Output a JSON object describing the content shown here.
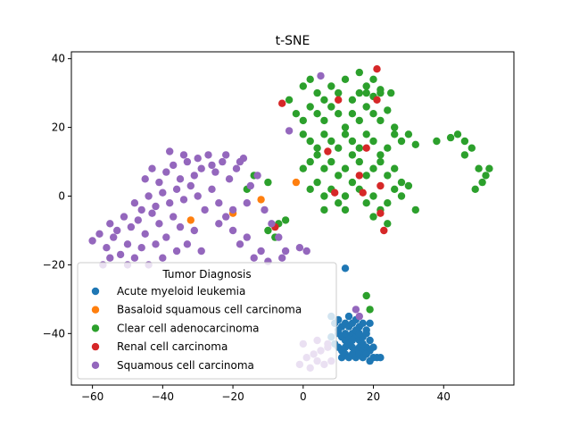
{
  "chart_data": {
    "type": "scatter",
    "title": "t-SNE",
    "xlabel": "",
    "ylabel": "",
    "xlim": [
      -66,
      60
    ],
    "ylim": [
      -55,
      42
    ],
    "xticks": [
      -60,
      -40,
      -20,
      0,
      20,
      40
    ],
    "yticks": [
      -40,
      -20,
      0,
      20,
      40
    ],
    "grid": false,
    "legend": {
      "title": "Tumor Diagnosis",
      "placement": "lower-left"
    },
    "series": [
      {
        "name": "Acute myeloid leukemia",
        "color": "#1f77b4",
        "points": [
          [
            12,
            -21
          ],
          [
            8,
            -35
          ],
          [
            9,
            -37
          ],
          [
            10,
            -36
          ],
          [
            11,
            -38
          ],
          [
            12,
            -37
          ],
          [
            13,
            -38
          ],
          [
            14,
            -37
          ],
          [
            15,
            -36
          ],
          [
            16,
            -38
          ],
          [
            17,
            -37
          ],
          [
            18,
            -39
          ],
          [
            10,
            -40
          ],
          [
            11,
            -41
          ],
          [
            12,
            -42
          ],
          [
            13,
            -41
          ],
          [
            14,
            -40
          ],
          [
            15,
            -41
          ],
          [
            16,
            -42
          ],
          [
            17,
            -41
          ],
          [
            18,
            -40
          ],
          [
            19,
            -42
          ],
          [
            9,
            -43
          ],
          [
            10,
            -44
          ],
          [
            11,
            -45
          ],
          [
            12,
            -44
          ],
          [
            13,
            -43
          ],
          [
            14,
            -44
          ],
          [
            15,
            -45
          ],
          [
            16,
            -44
          ],
          [
            17,
            -45
          ],
          [
            18,
            -44
          ],
          [
            19,
            -45
          ],
          [
            20,
            -44
          ],
          [
            11,
            -47
          ],
          [
            12,
            -46
          ],
          [
            13,
            -47
          ],
          [
            14,
            -46
          ],
          [
            15,
            -47
          ],
          [
            16,
            -46
          ],
          [
            17,
            -47
          ],
          [
            18,
            -46
          ],
          [
            19,
            -48
          ],
          [
            20,
            -47
          ],
          [
            21,
            -47
          ],
          [
            22,
            -47
          ],
          [
            10,
            -39
          ],
          [
            13,
            -35
          ],
          [
            15,
            -39
          ],
          [
            17,
            -43
          ],
          [
            14,
            -42
          ],
          [
            12,
            -40
          ],
          [
            19,
            -37
          ],
          [
            8,
            -41
          ],
          [
            16,
            -40
          ]
        ]
      },
      {
        "name": "Basaloid squamous cell carcinoma",
        "color": "#ff7f0e",
        "points": [
          [
            -2,
            4
          ],
          [
            -12,
            -1
          ],
          [
            -20,
            -5
          ],
          [
            -32,
            -7
          ]
        ]
      },
      {
        "name": "Clear cell adenocarcinoma",
        "color": "#2ca02c",
        "points": [
          [
            0,
            32
          ],
          [
            2,
            34
          ],
          [
            4,
            30
          ],
          [
            6,
            28
          ],
          [
            8,
            32
          ],
          [
            10,
            30
          ],
          [
            12,
            34
          ],
          [
            14,
            28
          ],
          [
            16,
            30
          ],
          [
            18,
            32
          ],
          [
            20,
            29
          ],
          [
            22,
            31
          ],
          [
            -4,
            28
          ],
          [
            -2,
            24
          ],
          [
            0,
            22
          ],
          [
            2,
            26
          ],
          [
            4,
            24
          ],
          [
            6,
            22
          ],
          [
            8,
            26
          ],
          [
            10,
            24
          ],
          [
            12,
            20
          ],
          [
            14,
            24
          ],
          [
            16,
            22
          ],
          [
            18,
            26
          ],
          [
            20,
            24
          ],
          [
            22,
            22
          ],
          [
            24,
            25
          ],
          [
            26,
            20
          ],
          [
            0,
            18
          ],
          [
            2,
            16
          ],
          [
            4,
            14
          ],
          [
            6,
            18
          ],
          [
            8,
            16
          ],
          [
            10,
            14
          ],
          [
            12,
            18
          ],
          [
            14,
            16
          ],
          [
            16,
            14
          ],
          [
            18,
            18
          ],
          [
            20,
            16
          ],
          [
            22,
            12
          ],
          [
            24,
            14
          ],
          [
            26,
            18
          ],
          [
            28,
            16
          ],
          [
            30,
            18
          ],
          [
            32,
            15
          ],
          [
            0,
            8
          ],
          [
            2,
            10
          ],
          [
            4,
            12
          ],
          [
            6,
            8
          ],
          [
            8,
            10
          ],
          [
            10,
            6
          ],
          [
            12,
            8
          ],
          [
            14,
            12
          ],
          [
            16,
            10
          ],
          [
            18,
            6
          ],
          [
            20,
            8
          ],
          [
            22,
            10
          ],
          [
            24,
            6
          ],
          [
            26,
            8
          ],
          [
            28,
            4
          ],
          [
            2,
            2
          ],
          [
            4,
            4
          ],
          [
            6,
            0
          ],
          [
            8,
            2
          ],
          [
            10,
            -2
          ],
          [
            12,
            0
          ],
          [
            14,
            4
          ],
          [
            16,
            2
          ],
          [
            18,
            -2
          ],
          [
            20,
            0
          ],
          [
            22,
            -4
          ],
          [
            24,
            -2
          ],
          [
            26,
            2
          ],
          [
            28,
            0
          ],
          [
            30,
            3
          ],
          [
            32,
            -4
          ],
          [
            6,
            -4
          ],
          [
            12,
            -4
          ],
          [
            20,
            -6
          ],
          [
            24,
            -8
          ],
          [
            -5,
            -7
          ],
          [
            -7,
            -8
          ],
          [
            -10,
            -10
          ],
          [
            -8,
            -12
          ],
          [
            16,
            36
          ],
          [
            18,
            30
          ],
          [
            20,
            34
          ],
          [
            22,
            30
          ],
          [
            25,
            30
          ],
          [
            38,
            16
          ],
          [
            42,
            17
          ],
          [
            44,
            18
          ],
          [
            46,
            16
          ],
          [
            48,
            14
          ],
          [
            46,
            12
          ],
          [
            50,
            8
          ],
          [
            52,
            6
          ],
          [
            51,
            4
          ],
          [
            49,
            2
          ],
          [
            53,
            8
          ],
          [
            18,
            -29
          ],
          [
            19,
            -33
          ],
          [
            -14,
            6
          ],
          [
            -10,
            4
          ],
          [
            -16,
            2
          ]
        ]
      },
      {
        "name": "Renal cell carcinoma",
        "color": "#d62728",
        "points": [
          [
            21,
            37
          ],
          [
            -6,
            27
          ],
          [
            10,
            28
          ],
          [
            21,
            28
          ],
          [
            7,
            13
          ],
          [
            18,
            14
          ],
          [
            16,
            6
          ],
          [
            22,
            3
          ],
          [
            9,
            1
          ],
          [
            17,
            1
          ],
          [
            22,
            -5
          ],
          [
            23,
            -10
          ],
          [
            -8,
            -9
          ]
        ]
      },
      {
        "name": "Squamous cell carcinoma",
        "color": "#9467bd",
        "points": [
          [
            5,
            35
          ],
          [
            -4,
            19
          ],
          [
            -60,
            -13
          ],
          [
            -58,
            -11
          ],
          [
            -56,
            -15
          ],
          [
            -54,
            -12
          ],
          [
            -52,
            -17
          ],
          [
            -50,
            -14
          ],
          [
            -48,
            -18
          ],
          [
            -46,
            -15
          ],
          [
            -44,
            -20
          ],
          [
            -55,
            -8
          ],
          [
            -53,
            -10
          ],
          [
            -51,
            -6
          ],
          [
            -49,
            -9
          ],
          [
            -47,
            -7
          ],
          [
            -45,
            -11
          ],
          [
            -43,
            -5
          ],
          [
            -41,
            -8
          ],
          [
            -39,
            -12
          ],
          [
            -37,
            -6
          ],
          [
            -35,
            -9
          ],
          [
            -33,
            -14
          ],
          [
            -31,
            -10
          ],
          [
            -29,
            -16
          ],
          [
            -48,
            -2
          ],
          [
            -46,
            -4
          ],
          [
            -44,
            0
          ],
          [
            -42,
            -3
          ],
          [
            -40,
            1
          ],
          [
            -38,
            -2
          ],
          [
            -36,
            2
          ],
          [
            -34,
            -1
          ],
          [
            -32,
            3
          ],
          [
            -30,
            0
          ],
          [
            -28,
            -4
          ],
          [
            -26,
            2
          ],
          [
            -24,
            -2
          ],
          [
            -22,
            -6
          ],
          [
            -20,
            -10
          ],
          [
            -18,
            -14
          ],
          [
            -16,
            -12
          ],
          [
            -14,
            -18
          ],
          [
            -12,
            -16
          ],
          [
            -10,
            -19
          ],
          [
            -45,
            5
          ],
          [
            -43,
            8
          ],
          [
            -41,
            4
          ],
          [
            -39,
            7
          ],
          [
            -37,
            9
          ],
          [
            -35,
            5
          ],
          [
            -33,
            10
          ],
          [
            -31,
            6
          ],
          [
            -29,
            8
          ],
          [
            -27,
            12
          ],
          [
            -25,
            7
          ],
          [
            -23,
            10
          ],
          [
            -21,
            5
          ],
          [
            -19,
            8
          ],
          [
            -17,
            11
          ],
          [
            -15,
            3
          ],
          [
            -13,
            6
          ],
          [
            -11,
            -4
          ],
          [
            -9,
            -8
          ],
          [
            -7,
            -12
          ],
          [
            -5,
            -16
          ],
          [
            -38,
            13
          ],
          [
            -34,
            12
          ],
          [
            -30,
            11
          ],
          [
            -26,
            9
          ],
          [
            -22,
            12
          ],
          [
            -18,
            10
          ],
          [
            -50,
            -20
          ],
          [
            -55,
            -18
          ],
          [
            -57,
            -20
          ],
          [
            -42,
            -14
          ],
          [
            -40,
            -18
          ],
          [
            -36,
            -16
          ],
          [
            -24,
            -8
          ],
          [
            -20,
            -4
          ],
          [
            -16,
            -2
          ],
          [
            -1,
            -15
          ],
          [
            1,
            -16
          ],
          [
            -6,
            -18
          ],
          [
            -1,
            -49
          ],
          [
            0,
            -43
          ],
          [
            1,
            -47
          ],
          [
            2,
            -50
          ],
          [
            3,
            -46
          ],
          [
            4,
            -48
          ],
          [
            5,
            -45
          ],
          [
            6,
            -49
          ],
          [
            7,
            -44
          ],
          [
            8,
            -48
          ],
          [
            4,
            -42
          ],
          [
            7,
            -43
          ],
          [
            15,
            -33
          ],
          [
            16,
            -35
          ]
        ]
      }
    ]
  }
}
